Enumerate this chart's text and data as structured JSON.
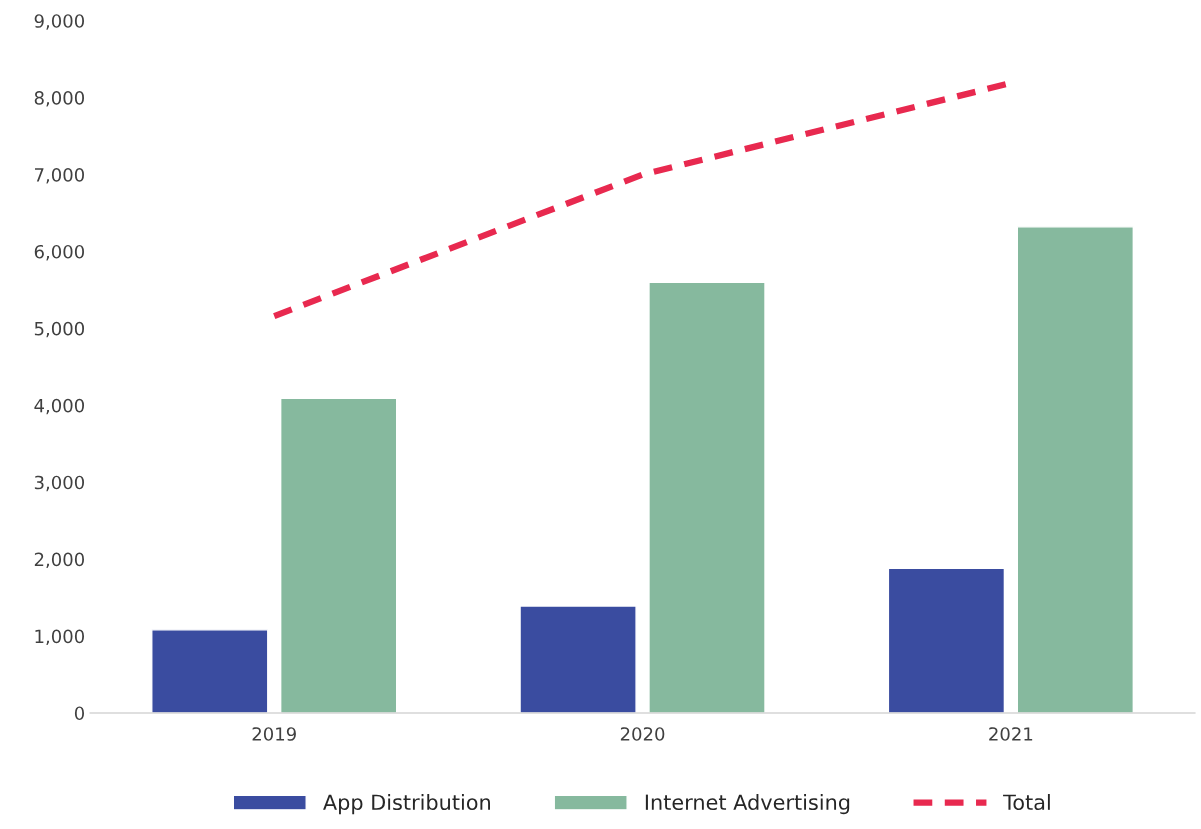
{
  "chart_data": {
    "type": "bar",
    "categories": [
      "2019",
      "2020",
      "2021"
    ],
    "series": [
      {
        "name": "App Distribution",
        "color": "#3a4ca0",
        "values": [
          1080,
          1390,
          1880
        ]
      },
      {
        "name": "Internet Advertising",
        "color": "#86b99e",
        "values": [
          4090,
          5600,
          6320
        ]
      },
      {
        "name": "Total",
        "type": "line",
        "color": "#e8294f",
        "line_style": "dashed",
        "values": [
          5160,
          7000,
          8190
        ]
      }
    ],
    "ylim": [
      0,
      9000
    ],
    "yticks": [
      0,
      {
        "value": 1000,
        "label": "1,000"
      },
      {
        "value": 2000,
        "label": "2,000"
      },
      {
        "value": 3000,
        "label": "3,000"
      },
      {
        "value": 4000,
        "label": "4,000"
      },
      {
        "value": 5000,
        "label": "5,000"
      },
      {
        "value": 6000,
        "label": "6,000"
      },
      {
        "value": 7000,
        "label": "7,000"
      },
      {
        "value": 8000,
        "label": "8,000"
      },
      {
        "value": 9000,
        "label": "9,000"
      }
    ],
    "legend": "bottom",
    "grid": false
  }
}
